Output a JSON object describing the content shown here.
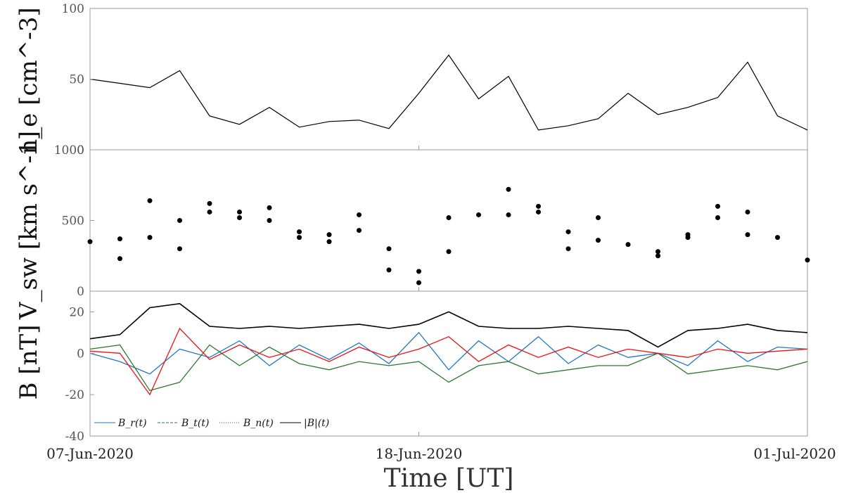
{
  "chart_data": [
    {
      "type": "line",
      "panel": "electron-density",
      "ylabel": "n_e [cm^-3]",
      "ylim": [
        0,
        100
      ],
      "yticks": [
        0,
        50,
        100
      ],
      "color": "#000000",
      "x": [
        "2020-06-07",
        "2020-06-08",
        "2020-06-09",
        "2020-06-10",
        "2020-06-11",
        "2020-06-12",
        "2020-06-13",
        "2020-06-14",
        "2020-06-15",
        "2020-06-16",
        "2020-06-17",
        "2020-06-18",
        "2020-06-19",
        "2020-06-20",
        "2020-06-21",
        "2020-06-22",
        "2020-06-23",
        "2020-06-24",
        "2020-06-25",
        "2020-06-26",
        "2020-06-27",
        "2020-06-28",
        "2020-06-29",
        "2020-06-30",
        "2020-07-01"
      ],
      "values": [
        50,
        47,
        44,
        56,
        24,
        18,
        30,
        16,
        20,
        21,
        15,
        40,
        67,
        36,
        52,
        14,
        17,
        22,
        40,
        25,
        30,
        37,
        62,
        24,
        14
      ]
    },
    {
      "type": "scatter",
      "panel": "solar-wind-speed",
      "ylabel": "V_sw [km s^-1]",
      "ylim": [
        0,
        1000
      ],
      "yticks": [
        0,
        500,
        1000
      ],
      "color": "#000000",
      "x": [
        "2020-06-07",
        "2020-06-08",
        "2020-06-08",
        "2020-06-09",
        "2020-06-09",
        "2020-06-10",
        "2020-06-10",
        "2020-06-11",
        "2020-06-11",
        "2020-06-12",
        "2020-06-12",
        "2020-06-13",
        "2020-06-13",
        "2020-06-14",
        "2020-06-14",
        "2020-06-15",
        "2020-06-15",
        "2020-06-16",
        "2020-06-16",
        "2020-06-17",
        "2020-06-17",
        "2020-06-18",
        "2020-06-18",
        "2020-06-19",
        "2020-06-19",
        "2020-06-20",
        "2020-06-21",
        "2020-06-21",
        "2020-06-22",
        "2020-06-22",
        "2020-06-23",
        "2020-06-23",
        "2020-06-24",
        "2020-06-24",
        "2020-06-25",
        "2020-06-26",
        "2020-06-26",
        "2020-06-27",
        "2020-06-27",
        "2020-06-28",
        "2020-06-28",
        "2020-06-29",
        "2020-06-29",
        "2020-06-30",
        "2020-07-01"
      ],
      "values": [
        350,
        370,
        230,
        640,
        380,
        500,
        300,
        620,
        560,
        560,
        520,
        590,
        500,
        420,
        380,
        400,
        350,
        540,
        430,
        300,
        150,
        60,
        140,
        280,
        520,
        540,
        720,
        540,
        600,
        560,
        420,
        300,
        520,
        360,
        330,
        250,
        280,
        380,
        400,
        600,
        520,
        400,
        560,
        380,
        220
      ]
    },
    {
      "type": "line",
      "panel": "magnetic-field",
      "ylabel": "B [nT]",
      "ylim": [
        -40,
        30
      ],
      "yticks": [
        -40,
        -20,
        0,
        20
      ],
      "legend_location": "lower-left",
      "x": [
        "2020-06-07",
        "2020-06-08",
        "2020-06-09",
        "2020-06-10",
        "2020-06-11",
        "2020-06-12",
        "2020-06-13",
        "2020-06-14",
        "2020-06-15",
        "2020-06-16",
        "2020-06-17",
        "2020-06-18",
        "2020-06-19",
        "2020-06-20",
        "2020-06-21",
        "2020-06-22",
        "2020-06-23",
        "2020-06-24",
        "2020-06-25",
        "2020-06-26",
        "2020-06-27",
        "2020-06-28",
        "2020-06-29",
        "2020-06-30",
        "2020-07-01"
      ],
      "series": [
        {
          "name": "B_r(t)",
          "color": "#1f77c4",
          "values": [
            0,
            -4,
            -10,
            2,
            -2,
            6,
            -6,
            4,
            -3,
            5,
            -5,
            10,
            -8,
            6,
            -4,
            8,
            -5,
            4,
            -2,
            0,
            -6,
            6,
            -4,
            3,
            2
          ]
        },
        {
          "name": "B_t(t)",
          "color": "#2a7a2e",
          "values": [
            2,
            4,
            -18,
            -14,
            4,
            -6,
            3,
            -5,
            -8,
            -4,
            -6,
            -4,
            -14,
            -6,
            -4,
            -10,
            -8,
            -6,
            -6,
            0,
            -10,
            -8,
            -6,
            -8,
            -4
          ]
        },
        {
          "name": "B_n(t)",
          "color": "#ee1111",
          "values": [
            1,
            0,
            -20,
            12,
            -3,
            4,
            -2,
            2,
            -4,
            3,
            -2,
            2,
            8,
            -4,
            4,
            -2,
            3,
            -2,
            2,
            0,
            -2,
            2,
            0,
            1,
            2
          ]
        },
        {
          "name": "|B|(t)",
          "color": "#000000",
          "values": [
            7,
            9,
            22,
            24,
            13,
            12,
            13,
            12,
            13,
            14,
            12,
            14,
            20,
            13,
            12,
            12,
            13,
            12,
            11,
            3,
            11,
            12,
            14,
            11,
            10
          ]
        }
      ]
    }
  ],
  "axis": {
    "xlabel": "Time [UT]",
    "xticks": [
      {
        "date": "2020-06-07",
        "label": "07-Jun-2020"
      },
      {
        "date": "2020-06-18",
        "label": "18-Jun-2020"
      },
      {
        "date": "2020-07-01",
        "label": "01-Jul-2020"
      }
    ]
  }
}
